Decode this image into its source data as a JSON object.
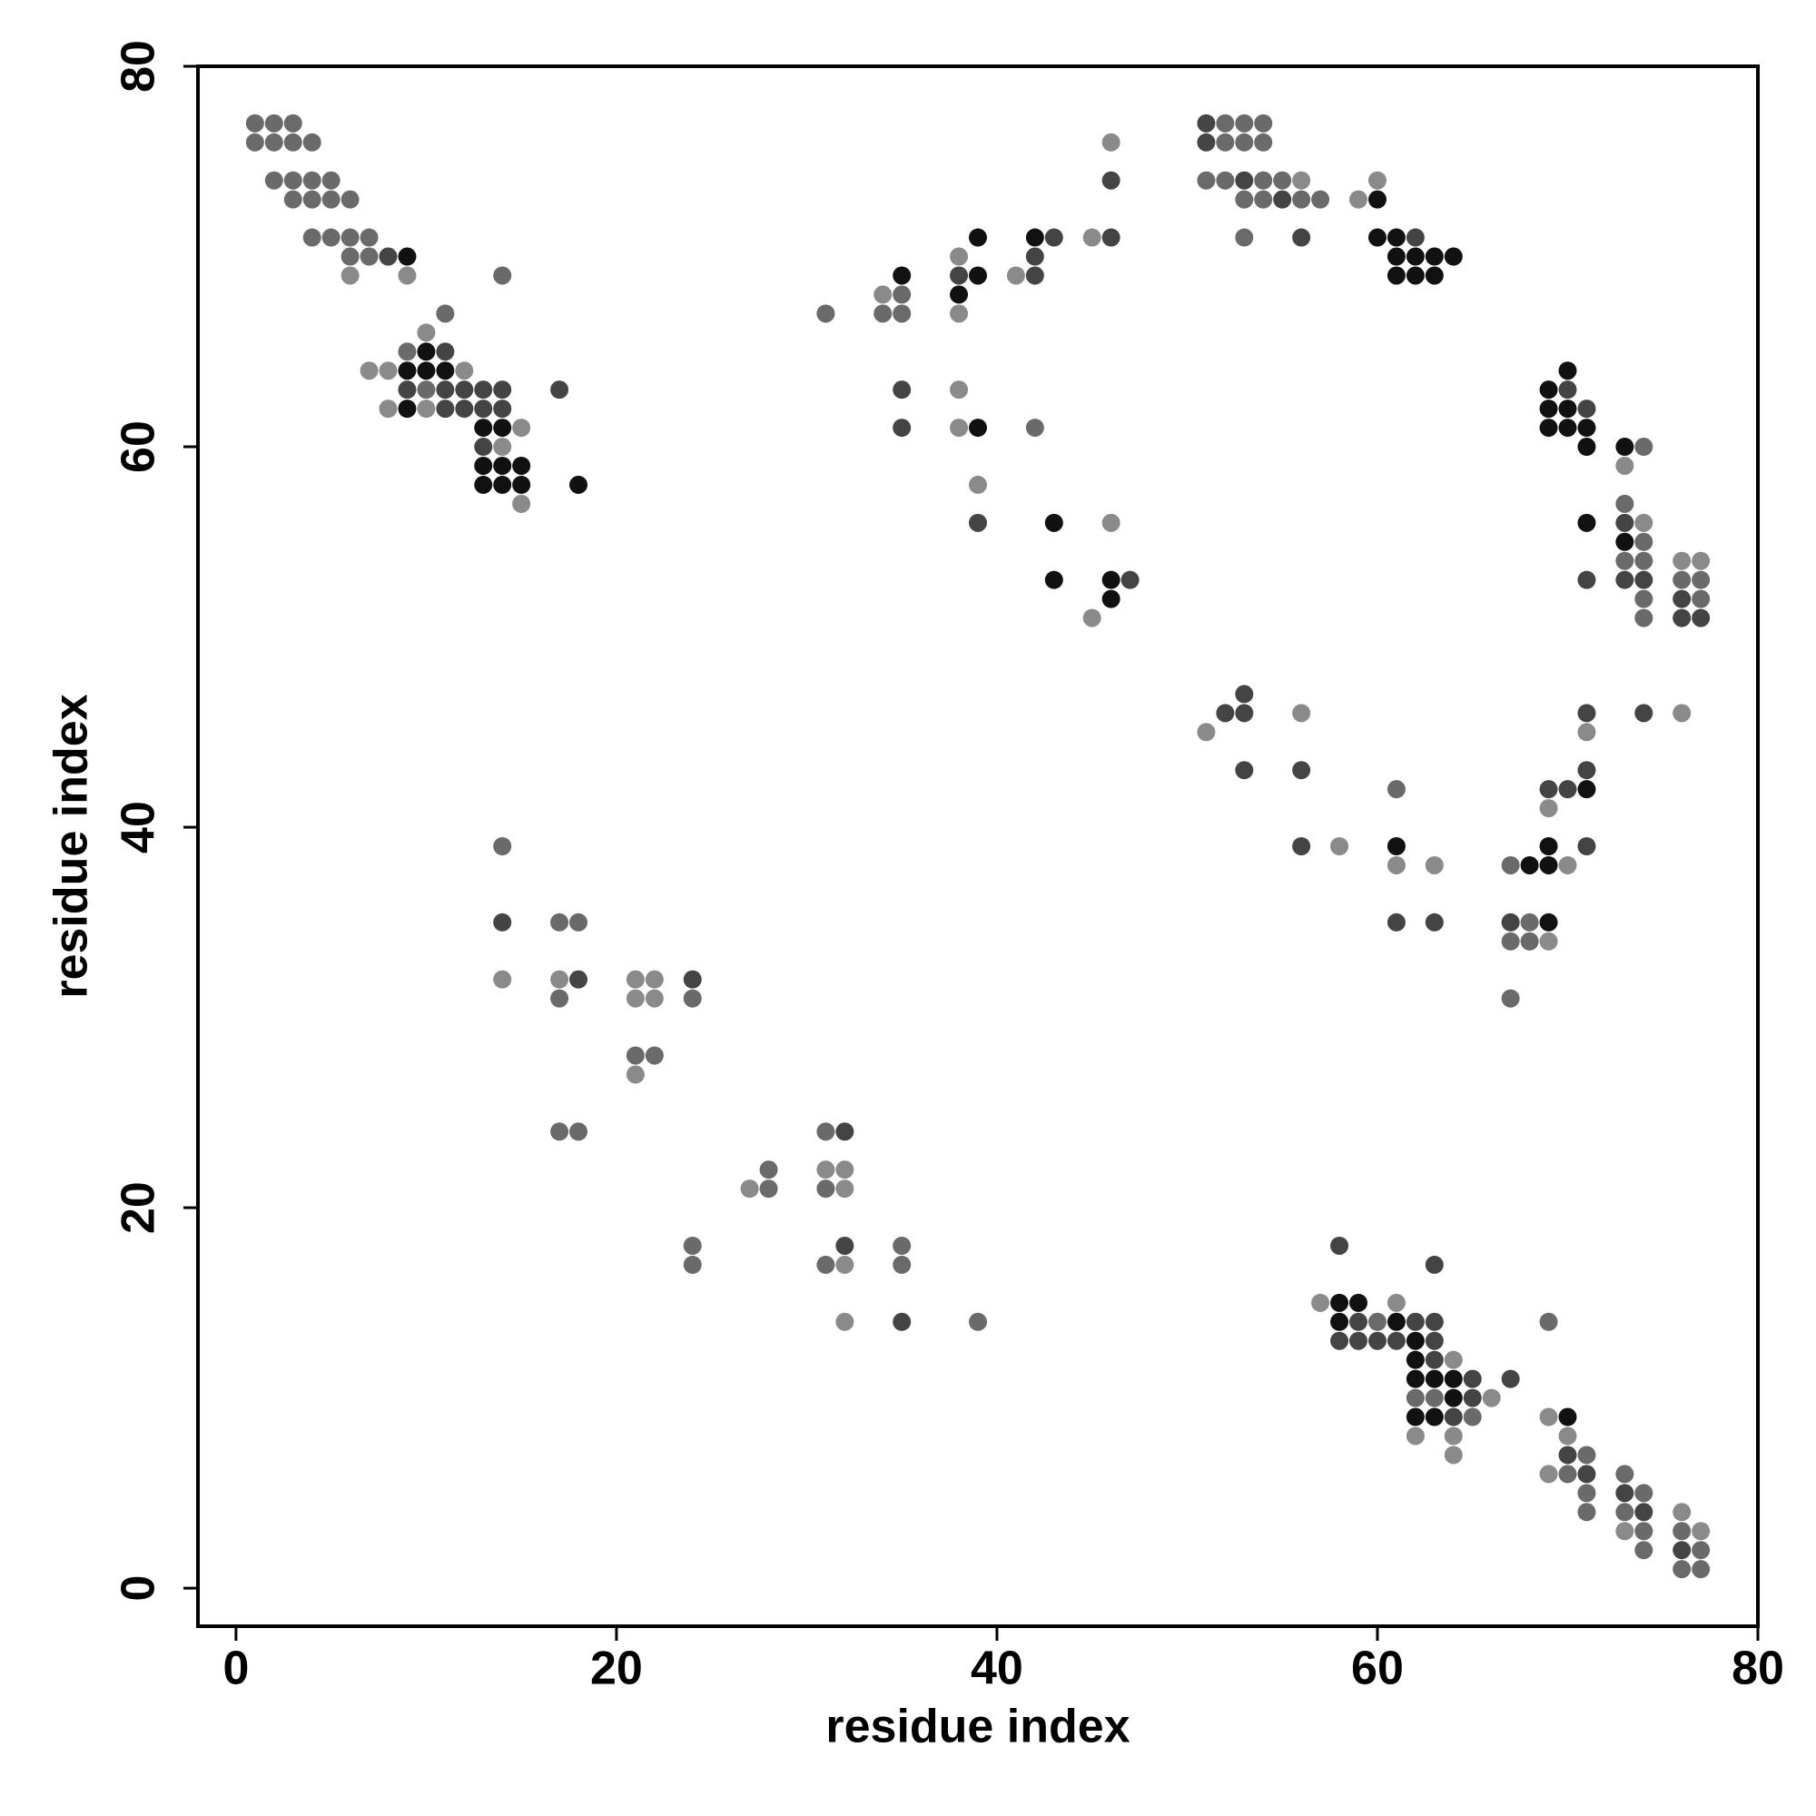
{
  "chart_data": {
    "type": "scatter",
    "x_label": "residue index",
    "y_label": "residue index",
    "xlim": [
      -2,
      80
    ],
    "ylim": [
      -2,
      80
    ],
    "xticks": [
      0,
      20,
      40,
      60,
      80
    ],
    "yticks": [
      0,
      20,
      40,
      60,
      80
    ],
    "grid": false,
    "x": [
      1,
      2,
      3,
      51,
      52,
      53,
      54,
      1,
      2,
      3,
      4,
      46,
      51,
      52,
      53,
      54,
      2,
      3,
      4,
      5,
      46,
      51,
      52,
      53,
      54,
      55,
      56,
      60,
      3,
      4,
      5,
      6,
      53,
      54,
      55,
      56,
      57,
      59,
      60,
      4,
      5,
      6,
      7,
      39,
      42,
      43,
      45,
      46,
      53,
      56,
      60,
      61,
      62,
      6,
      7,
      8,
      9,
      38,
      42,
      61,
      62,
      63,
      64,
      6,
      9,
      14,
      35,
      38,
      39,
      41,
      42,
      61,
      62,
      63,
      34,
      35,
      38,
      11,
      31,
      34,
      35,
      38,
      10,
      9,
      10,
      11,
      7,
      8,
      9,
      10,
      11,
      12,
      70,
      9,
      10,
      11,
      12,
      13,
      14,
      17,
      35,
      38,
      69,
      70,
      8,
      9,
      10,
      11,
      12,
      13,
      14,
      69,
      70,
      71,
      13,
      14,
      15,
      35,
      38,
      39,
      42,
      69,
      70,
      71,
      13,
      14,
      71,
      73,
      74,
      13,
      14,
      15,
      73,
      13,
      14,
      15,
      18,
      39,
      15,
      73,
      39,
      43,
      46,
      71,
      73,
      74,
      73,
      74,
      73,
      74,
      76,
      77,
      43,
      46,
      47,
      71,
      73,
      74,
      76,
      77,
      46,
      74,
      76,
      77,
      45,
      74,
      76,
      77,
      53,
      52,
      53,
      56,
      71,
      74,
      76,
      51,
      71,
      53,
      56,
      71,
      61,
      69,
      70,
      71,
      69,
      14,
      56,
      58,
      61,
      69,
      71,
      61,
      63,
      67,
      68,
      69,
      70,
      14,
      17,
      18,
      61,
      63,
      67,
      68,
      69,
      67,
      68,
      69,
      14,
      17,
      18,
      21,
      22,
      24,
      17,
      21,
      22,
      24,
      67,
      21,
      22,
      21,
      17,
      18,
      31,
      32,
      28,
      31,
      32,
      27,
      28,
      31,
      32,
      24,
      32,
      35,
      58,
      24,
      31,
      32,
      35,
      63,
      57,
      58,
      59,
      61,
      32,
      35,
      39,
      58,
      59,
      60,
      61,
      62,
      63,
      69,
      58,
      59,
      60,
      61,
      62,
      63,
      62,
      63,
      64,
      62,
      63,
      64,
      65,
      67,
      62,
      63,
      64,
      65,
      66,
      62,
      63,
      64,
      65,
      69,
      70,
      62,
      64,
      70,
      64,
      70,
      71,
      69,
      70,
      71,
      73,
      71,
      73,
      74,
      71,
      73,
      74,
      76,
      73,
      74,
      76,
      77,
      74,
      76,
      77,
      76,
      77
    ],
    "y": [
      77,
      77,
      77,
      77,
      77,
      77,
      77,
      76,
      76,
      76,
      76,
      76,
      76,
      76,
      76,
      76,
      74,
      74,
      74,
      74,
      74,
      74,
      74,
      74,
      74,
      74,
      74,
      74,
      73,
      73,
      73,
      73,
      73,
      73,
      73,
      73,
      73,
      73,
      73,
      71,
      71,
      71,
      71,
      71,
      71,
      71,
      71,
      71,
      71,
      71,
      71,
      71,
      71,
      70,
      70,
      70,
      70,
      70,
      70,
      70,
      70,
      70,
      70,
      69,
      69,
      69,
      69,
      69,
      69,
      69,
      69,
      69,
      69,
      69,
      68,
      68,
      68,
      67,
      67,
      67,
      67,
      67,
      66,
      65,
      65,
      65,
      64,
      64,
      64,
      64,
      64,
      64,
      64,
      63,
      63,
      63,
      63,
      63,
      63,
      63,
      63,
      63,
      63,
      63,
      62,
      62,
      62,
      62,
      62,
      62,
      62,
      62,
      62,
      62,
      61,
      61,
      61,
      61,
      61,
      61,
      61,
      61,
      61,
      61,
      60,
      60,
      60,
      60,
      60,
      59,
      59,
      59,
      59,
      58,
      58,
      58,
      58,
      58,
      57,
      57,
      56,
      56,
      56,
      56,
      56,
      56,
      55,
      55,
      54,
      54,
      54,
      54,
      53,
      53,
      53,
      53,
      53,
      53,
      53,
      53,
      52,
      52,
      52,
      52,
      51,
      51,
      51,
      51,
      47,
      46,
      46,
      46,
      46,
      46,
      46,
      45,
      45,
      43,
      43,
      43,
      42,
      42,
      42,
      42,
      41,
      39,
      39,
      39,
      39,
      39,
      39,
      38,
      38,
      38,
      38,
      38,
      38,
      35,
      35,
      35,
      35,
      35,
      35,
      35,
      35,
      34,
      34,
      34,
      32,
      32,
      32,
      32,
      32,
      32,
      31,
      31,
      31,
      31,
      31,
      28,
      28,
      27,
      24,
      24,
      24,
      24,
      22,
      22,
      22,
      21,
      21,
      21,
      21,
      18,
      18,
      18,
      18,
      17,
      17,
      17,
      17,
      17,
      15,
      15,
      15,
      15,
      14,
      14,
      14,
      14,
      14,
      14,
      14,
      14,
      14,
      14,
      13,
      13,
      13,
      13,
      13,
      13,
      12,
      12,
      12,
      11,
      11,
      11,
      11,
      11,
      10,
      10,
      10,
      10,
      10,
      9,
      9,
      9,
      9,
      9,
      9,
      8,
      8,
      8,
      7,
      7,
      7,
      6,
      6,
      6,
      6,
      5,
      5,
      5,
      4,
      4,
      4,
      4,
      3,
      3,
      3,
      3,
      2,
      2,
      2,
      1,
      1
    ],
    "colors": [
      "#6a6a6a",
      "#6a6a6a",
      "#6a6a6a",
      "#444444",
      "#6a6a6a",
      "#6a6a6a",
      "#6a6a6a",
      "#6a6a6a",
      "#6a6a6a",
      "#6a6a6a",
      "#6a6a6a",
      "#8a8a8a",
      "#444444",
      "#6a6a6a",
      "#6a6a6a",
      "#6a6a6a",
      "#6a6a6a",
      "#6a6a6a",
      "#6a6a6a",
      "#6a6a6a",
      "#444444",
      "#6a6a6a",
      "#6a6a6a",
      "#444444",
      "#6a6a6a",
      "#6a6a6a",
      "#8a8a8a",
      "#8a8a8a",
      "#6a6a6a",
      "#6a6a6a",
      "#6a6a6a",
      "#6a6a6a",
      "#6a6a6a",
      "#6a6a6a",
      "#444444",
      "#6a6a6a",
      "#6a6a6a",
      "#8a8a8a",
      "#111111",
      "#6a6a6a",
      "#6a6a6a",
      "#6a6a6a",
      "#6a6a6a",
      "#111111",
      "#111111",
      "#444444",
      "#8a8a8a",
      "#444444",
      "#6a6a6a",
      "#444444",
      "#111111",
      "#111111",
      "#444444",
      "#6a6a6a",
      "#6a6a6a",
      "#444444",
      "#111111",
      "#8a8a8a",
      "#444444",
      "#111111",
      "#111111",
      "#111111",
      "#111111",
      "#8a8a8a",
      "#8a8a8a",
      "#6a6a6a",
      "#111111",
      "#444444",
      "#111111",
      "#8a8a8a",
      "#444444",
      "#111111",
      "#111111",
      "#111111",
      "#8a8a8a",
      "#6a6a6a",
      "#111111",
      "#6a6a6a",
      "#6a6a6a",
      "#6a6a6a",
      "#6a6a6a",
      "#8a8a8a",
      "#8a8a8a",
      "#6a6a6a",
      "#111111",
      "#444444",
      "#8a8a8a",
      "#8a8a8a",
      "#111111",
      "#111111",
      "#111111",
      "#8a8a8a",
      "#111111",
      "#444444",
      "#6a6a6a",
      "#444444",
      "#444444",
      "#444444",
      "#444444",
      "#444444",
      "#444444",
      "#8a8a8a",
      "#111111",
      "#444444",
      "#8a8a8a",
      "#111111",
      "#8a8a8a",
      "#444444",
      "#444444",
      "#444444",
      "#444444",
      "#111111",
      "#111111",
      "#444444",
      "#111111",
      "#111111",
      "#8a8a8a",
      "#444444",
      "#8a8a8a",
      "#111111",
      "#6a6a6a",
      "#111111",
      "#111111",
      "#111111",
      "#444444",
      "#8a8a8a",
      "#111111",
      "#111111",
      "#6a6a6a",
      "#111111",
      "#111111",
      "#111111",
      "#8a8a8a",
      "#111111",
      "#111111",
      "#111111",
      "#111111",
      "#8a8a8a",
      "#8a8a8a",
      "#6a6a6a",
      "#444444",
      "#111111",
      "#8a8a8a",
      "#111111",
      "#444444",
      "#8a8a8a",
      "#111111",
      "#6a6a6a",
      "#6a6a6a",
      "#6a6a6a",
      "#8a8a8a",
      "#8a8a8a",
      "#111111",
      "#111111",
      "#444444",
      "#444444",
      "#444444",
      "#444444",
      "#6a6a6a",
      "#6a6a6a",
      "#111111",
      "#6a6a6a",
      "#444444",
      "#6a6a6a",
      "#8a8a8a",
      "#6a6a6a",
      "#444444",
      "#444444",
      "#444444",
      "#444444",
      "#444444",
      "#8a8a8a",
      "#444444",
      "#444444",
      "#8a8a8a",
      "#8a8a8a",
      "#8a8a8a",
      "#444444",
      "#444444",
      "#444444",
      "#6a6a6a",
      "#444444",
      "#444444",
      "#111111",
      "#8a8a8a",
      "#6a6a6a",
      "#444444",
      "#8a8a8a",
      "#111111",
      "#111111",
      "#444444",
      "#8a8a8a",
      "#8a8a8a",
      "#6a6a6a",
      "#111111",
      "#111111",
      "#8a8a8a",
      "#444444",
      "#6a6a6a",
      "#6a6a6a",
      "#444444",
      "#444444",
      "#444444",
      "#6a6a6a",
      "#111111",
      "#6a6a6a",
      "#6a6a6a",
      "#8a8a8a",
      "#8a8a8a",
      "#8a8a8a",
      "#444444",
      "#8a8a8a",
      "#8a8a8a",
      "#444444",
      "#6a6a6a",
      "#8a8a8a",
      "#8a8a8a",
      "#6a6a6a",
      "#6a6a6a",
      "#6a6a6a",
      "#6a6a6a",
      "#8a8a8a",
      "#6a6a6a",
      "#6a6a6a",
      "#6a6a6a",
      "#444444",
      "#6a6a6a",
      "#8a8a8a",
      "#8a8a8a",
      "#8a8a8a",
      "#6a6a6a",
      "#6a6a6a",
      "#8a8a8a",
      "#6a6a6a",
      "#444444",
      "#6a6a6a",
      "#444444",
      "#6a6a6a",
      "#6a6a6a",
      "#8a8a8a",
      "#6a6a6a",
      "#444444",
      "#8a8a8a",
      "#111111",
      "#111111",
      "#8a8a8a",
      "#8a8a8a",
      "#444444",
      "#6a6a6a",
      "#111111",
      "#444444",
      "#6a6a6a",
      "#111111",
      "#444444",
      "#444444",
      "#6a6a6a",
      "#444444",
      "#444444",
      "#444444",
      "#444444",
      "#111111",
      "#444444",
      "#111111",
      "#444444",
      "#8a8a8a",
      "#111111",
      "#111111",
      "#111111",
      "#444444",
      "#444444",
      "#6a6a6a",
      "#6a6a6a",
      "#111111",
      "#444444",
      "#8a8a8a",
      "#111111",
      "#111111",
      "#444444",
      "#6a6a6a",
      "#8a8a8a",
      "#111111",
      "#8a8a8a",
      "#8a8a8a",
      "#8a8a8a",
      "#8a8a8a",
      "#444444",
      "#6a6a6a",
      "#8a8a8a",
      "#6a6a6a",
      "#444444",
      "#6a6a6a",
      "#6a6a6a",
      "#444444",
      "#6a6a6a",
      "#6a6a6a",
      "#6a6a6a",
      "#444444",
      "#8a8a8a",
      "#8a8a8a",
      "#6a6a6a",
      "#6a6a6a",
      "#8a8a8a",
      "#6a6a6a",
      "#444444",
      "#6a6a6a",
      "#6a6a6a",
      "#6a6a6a"
    ]
  }
}
